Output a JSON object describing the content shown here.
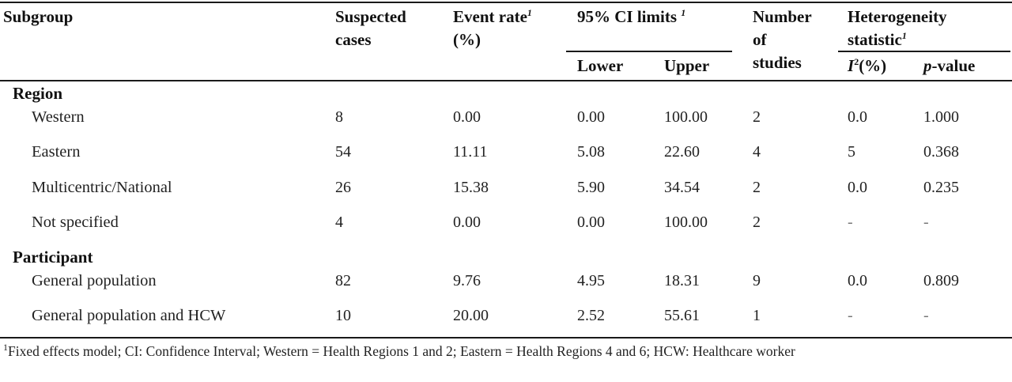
{
  "headers": {
    "subgroup": "Subgroup",
    "suspected": [
      "Suspected",
      "cases"
    ],
    "event_rate": {
      "text": "Event rate",
      "sup": "1",
      "line2": "(%)"
    },
    "ci": {
      "text": "95% CI limits ",
      "sup": "1"
    },
    "lower": "Lower",
    "upper": "Upper",
    "studies": [
      "Number",
      "of",
      "studies"
    ],
    "hetero": {
      "line1": "Heterogeneity",
      "line2": "statistic",
      "sup": "1"
    },
    "i2": {
      "i": "I",
      "sup": "2",
      "rest": "(%)"
    },
    "pvalue": {
      "p": "p",
      "rest": "-value"
    }
  },
  "sections": [
    {
      "label": "Region",
      "rows": [
        {
          "subgroup": "Western",
          "cases": "8",
          "rate": "0.00",
          "lower": "0.00",
          "upper": "100.00",
          "studies": "2",
          "i2": "0.0",
          "p": "1.000"
        },
        {
          "subgroup": "Eastern",
          "cases": "54",
          "rate": "11.11",
          "lower": "5.08",
          "upper": "22.60",
          "studies": "4",
          "i2": "5",
          "p": "0.368"
        },
        {
          "subgroup": "Multicentric/National",
          "cases": "26",
          "rate": "15.38",
          "lower": "5.90",
          "upper": "34.54",
          "studies": "2",
          "i2": "0.0",
          "p": "0.235"
        },
        {
          "subgroup": "Not specified",
          "cases": "4",
          "rate": "0.00",
          "lower": "0.00",
          "upper": "100.00",
          "studies": "2",
          "i2": "-",
          "p": "-"
        }
      ]
    },
    {
      "label": "Participant",
      "rows": [
        {
          "subgroup": "General population",
          "cases": "82",
          "rate": "9.76",
          "lower": "4.95",
          "upper": "18.31",
          "studies": "9",
          "i2": "0.0",
          "p": "0.809"
        },
        {
          "subgroup": "General population and HCW",
          "cases": "10",
          "rate": "20.00",
          "lower": "2.52",
          "upper": "55.61",
          "studies": "1",
          "i2": "-",
          "p": "-"
        }
      ]
    }
  ],
  "footnote": {
    "sup": "1",
    "text": "Fixed effects model; CI: Confidence Interval; Western = Health Regions 1 and 2; Eastern = Health Regions 4 and 6; HCW: Healthcare worker"
  }
}
